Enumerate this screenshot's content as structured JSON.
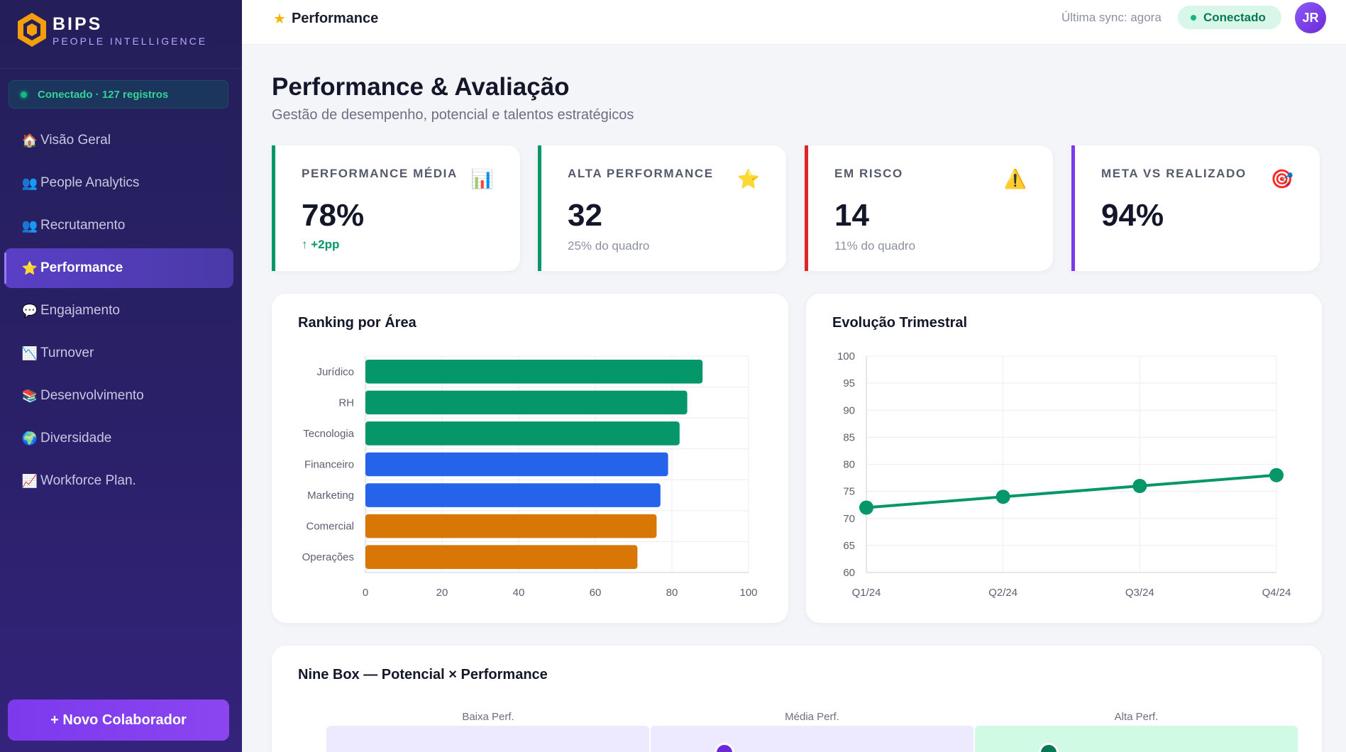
{
  "brand": {
    "name": "BIPS",
    "subtitle": "PEOPLE INTELLIGENCE"
  },
  "connection": {
    "status_text": "Conectado · 127 registros"
  },
  "sidebar": {
    "items": [
      {
        "label": "Visão Geral",
        "icon": "house-icon",
        "glyph": "🏠",
        "active": false
      },
      {
        "label": "People Analytics",
        "icon": "people-icon",
        "glyph": "👥",
        "active": false
      },
      {
        "label": "Recrutamento",
        "icon": "people-icon",
        "glyph": "👥",
        "active": false
      },
      {
        "label": "Performance",
        "icon": "star-icon",
        "glyph": "⭐",
        "active": true
      },
      {
        "label": "Engajamento",
        "icon": "speech-bubble-icon",
        "glyph": "💬",
        "active": false
      },
      {
        "label": "Turnover",
        "icon": "chart-down-icon",
        "glyph": "📉",
        "active": false
      },
      {
        "label": "Desenvolvimento",
        "icon": "books-icon",
        "glyph": "📚",
        "active": false
      },
      {
        "label": "Diversidade",
        "icon": "globe-icon",
        "glyph": "🌍",
        "active": false
      },
      {
        "label": "Workforce Plan.",
        "icon": "chart-up-icon",
        "glyph": "📈",
        "active": false
      }
    ],
    "new_button": "+ Novo Colaborador"
  },
  "topbar": {
    "breadcrumb": "Performance",
    "breadcrumb_icon": "star-icon",
    "sync": "Última sync: agora",
    "status": "Conectado",
    "avatar": "JR"
  },
  "page": {
    "title": "Performance & Avaliação",
    "subtitle": "Gestão de desempenho, potencial e talentos estratégicos"
  },
  "kpis": [
    {
      "label": "PERFORMANCE MÉDIA",
      "value": "78%",
      "delta": "↑ +2pp",
      "note": "",
      "icon": "bar-chart-icon",
      "glyph": "📊",
      "color": "#059669"
    },
    {
      "label": "ALTA PERFORMANCE",
      "value": "32",
      "delta": "",
      "note": "25% do quadro",
      "icon": "star-icon",
      "glyph": "⭐",
      "color": "#059669"
    },
    {
      "label": "EM RISCO",
      "value": "14",
      "delta": "",
      "note": "11% do quadro",
      "icon": "warning-icon",
      "glyph": "⚠️",
      "color": "#dc2626"
    },
    {
      "label": "META VS REALIZADO",
      "value": "94%",
      "delta": "",
      "note": "",
      "icon": "target-icon",
      "glyph": "🎯",
      "color": "#7c3aed"
    }
  ],
  "ranking": {
    "title": "Ranking por Área"
  },
  "evolution": {
    "title": "Evolução Trimestral"
  },
  "ninebox": {
    "title": "Nine Box — Potencial × Performance",
    "columns": [
      "Baixa Perf.",
      "Média Perf.",
      "Alta Perf."
    ]
  },
  "chart_data": [
    {
      "type": "bar",
      "orientation": "horizontal",
      "title": "Ranking por Área",
      "categories": [
        "Jurídico",
        "RH",
        "Tecnologia",
        "Financeiro",
        "Marketing",
        "Comercial",
        "Operações"
      ],
      "values": [
        88,
        84,
        82,
        79,
        77,
        76,
        71
      ],
      "colors": [
        "#059669",
        "#059669",
        "#059669",
        "#2563eb",
        "#2563eb",
        "#d97706",
        "#d97706"
      ],
      "xlim": [
        0,
        100
      ],
      "xticks": [
        0,
        20,
        40,
        60,
        80,
        100
      ],
      "grid": true
    },
    {
      "type": "line",
      "title": "Evolução Trimestral",
      "x": [
        "Q1/24",
        "Q2/24",
        "Q3/24",
        "Q4/24"
      ],
      "series": [
        {
          "values": [
            72,
            74,
            76,
            78
          ],
          "color": "#059669"
        }
      ],
      "ylim": [
        60,
        100
      ],
      "yticks": [
        60,
        65,
        70,
        75,
        80,
        85,
        90,
        95,
        100
      ],
      "grid": true
    }
  ]
}
